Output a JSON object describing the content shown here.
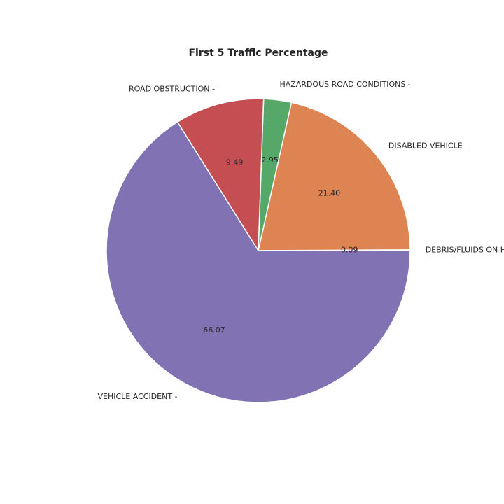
{
  "chart_data": {
    "type": "pie",
    "title": "First 5 Traffic Percentage",
    "start_angle_deg": 0,
    "direction": "counterclockwise",
    "slices": [
      {
        "label": "DEBRIS/FLUIDS ON H",
        "value": 0.09,
        "pct_label": "0.09",
        "color": "#4c72b0"
      },
      {
        "label": "DISABLED VEHICLE -",
        "value": 21.4,
        "pct_label": "21.40",
        "color": "#dd8452"
      },
      {
        "label": "HAZARDOUS ROAD CONDITIONS -",
        "value": 2.95,
        "pct_label": "2.95",
        "color": "#55a868"
      },
      {
        "label": "ROAD OBSTRUCTION -",
        "value": 9.49,
        "pct_label": "9.49",
        "color": "#c44e52"
      },
      {
        "label": "VEHICLE ACCIDENT -",
        "value": 66.07,
        "pct_label": "66.07",
        "color": "#8172b3"
      }
    ]
  }
}
